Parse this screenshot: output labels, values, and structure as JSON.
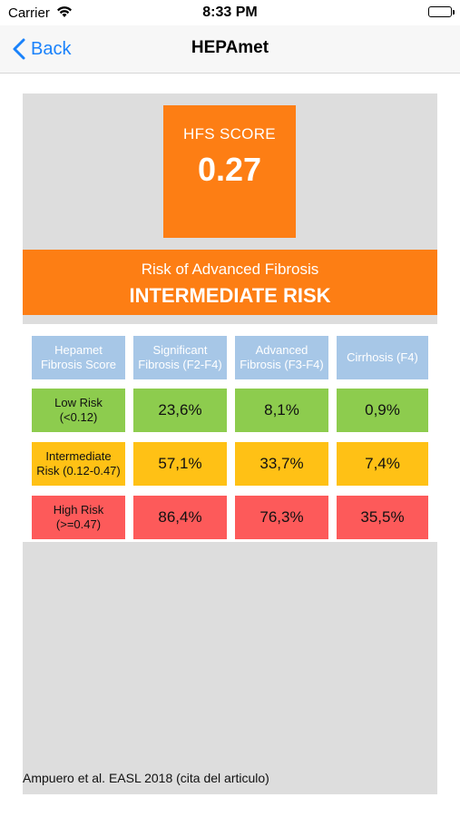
{
  "status_bar": {
    "carrier": "Carrier",
    "time": "8:33 PM"
  },
  "nav": {
    "back_label": "Back",
    "title": "HEPAmet"
  },
  "score": {
    "label": "HFS SCORE",
    "value": "0.27"
  },
  "risk": {
    "caption": "Risk of Advanced Fibrosis",
    "level": "INTERMEDIATE RISK"
  },
  "table": {
    "headers": [
      "Hepamet Fibrosis Score",
      "Significant Fibrosis (F2-F4)",
      "Advanced Fibrosis (F3-F4)",
      "Cirrhosis (F4)"
    ],
    "rows": [
      {
        "label": "Low Risk (<0.12)",
        "values": [
          "23,6%",
          "8,1%",
          "0,9%"
        ],
        "color": "#8dcc4e"
      },
      {
        "label": "Intermediate Risk (0.12-0.47)",
        "values": [
          "57,1%",
          "33,7%",
          "7,4%"
        ],
        "color": "#ffc115"
      },
      {
        "label": "High Risk (>=0.47)",
        "values": [
          "86,4%",
          "76,3%",
          "35,5%"
        ],
        "color": "#fd5a5a"
      }
    ]
  },
  "footer": {
    "citation": "Ampuero et al. EASL 2018 (cita del articulo)"
  },
  "colors": {
    "accent": "#fd7e14",
    "link": "#1a82fb",
    "header_cell": "#a7c7e7"
  }
}
